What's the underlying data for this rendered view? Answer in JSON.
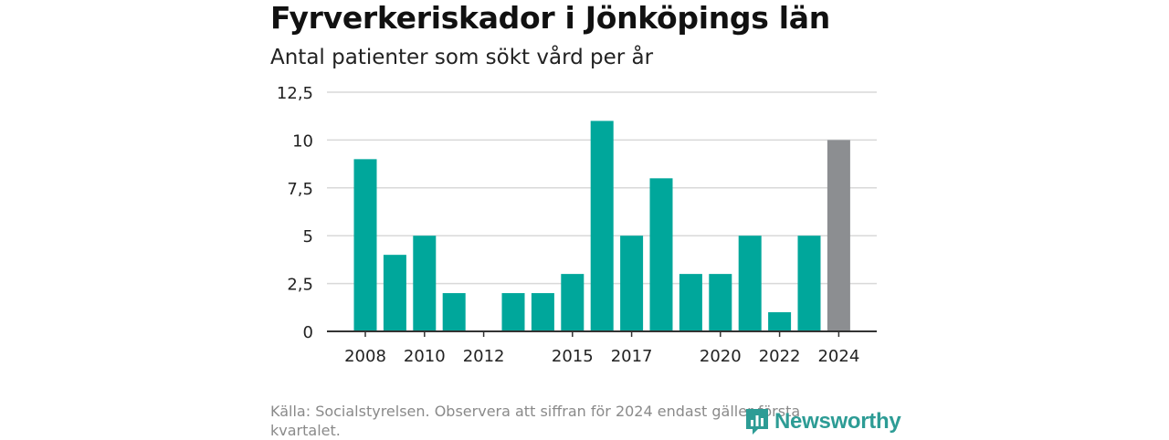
{
  "title": "Fyrverkeriskador i Jönköpings län",
  "subtitle": "Antal patienter som sökt vård per år",
  "source": "Källa: Socialstyrelsen. Observera att siffran för 2024 endast gäller första kvartalet.",
  "logo_text": "Newsworthy",
  "colors": {
    "bar": "#00a79b",
    "highlight": "#8c8e91",
    "grid": "#d9d9d9",
    "axis": "#333333",
    "logo": "#2d9c95"
  },
  "chart_data": {
    "type": "bar",
    "title": "Fyrverkeriskador i Jönköpings län",
    "subtitle": "Antal patienter som sökt vård per år",
    "xlabel": "",
    "ylabel": "",
    "categories": [
      "2008",
      "2009",
      "2010",
      "2011",
      "2012",
      "2013",
      "2014",
      "2015",
      "2016",
      "2017",
      "2018",
      "2019",
      "2020",
      "2021",
      "2022",
      "2023",
      "2024"
    ],
    "values": [
      9,
      4,
      5,
      2,
      0,
      2,
      2,
      3,
      11,
      5,
      8,
      3,
      3,
      5,
      1,
      5,
      10
    ],
    "highlight": [
      "2024"
    ],
    "x_tick_labels": [
      "2008",
      "2010",
      "2012",
      "2015",
      "2017",
      "2020",
      "2022",
      "2024"
    ],
    "y_ticks": [
      0,
      2.5,
      5,
      7.5,
      10,
      12.5
    ],
    "y_tick_labels": [
      "0",
      "2,5",
      "5",
      "7,5",
      "10",
      "12,5"
    ],
    "ylim": [
      0,
      12.5
    ],
    "grid": true
  }
}
